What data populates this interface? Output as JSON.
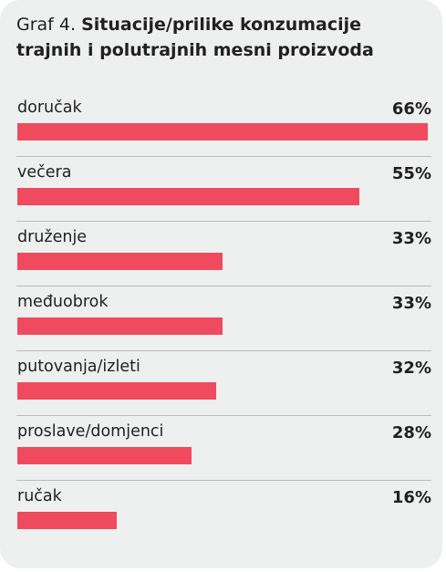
{
  "chart_data": {
    "type": "bar",
    "orientation": "horizontal",
    "title_prefix": "Graf 4.",
    "title": "Situacije/prilike konzumacije trajnih i polutrajnih mesni proizvoda",
    "categories": [
      "doručak",
      "večera",
      "druženje",
      "međuobrok",
      "putovanja/izleti",
      "proslave/domjenci",
      "ručak"
    ],
    "values": [
      66,
      55,
      33,
      33,
      32,
      28,
      16
    ],
    "value_labels": [
      "66%",
      "55%",
      "33%",
      "33%",
      "32%",
      "28%",
      "16%"
    ],
    "unit": "%",
    "xlim": [
      0,
      66
    ],
    "grid": false,
    "legend": "none",
    "bar_color": "#ef4a5d"
  },
  "colors": {
    "background": "#eef0f0",
    "bar": "#ef4a5d",
    "text": "#231f20",
    "divider": "#b9bcbc"
  }
}
